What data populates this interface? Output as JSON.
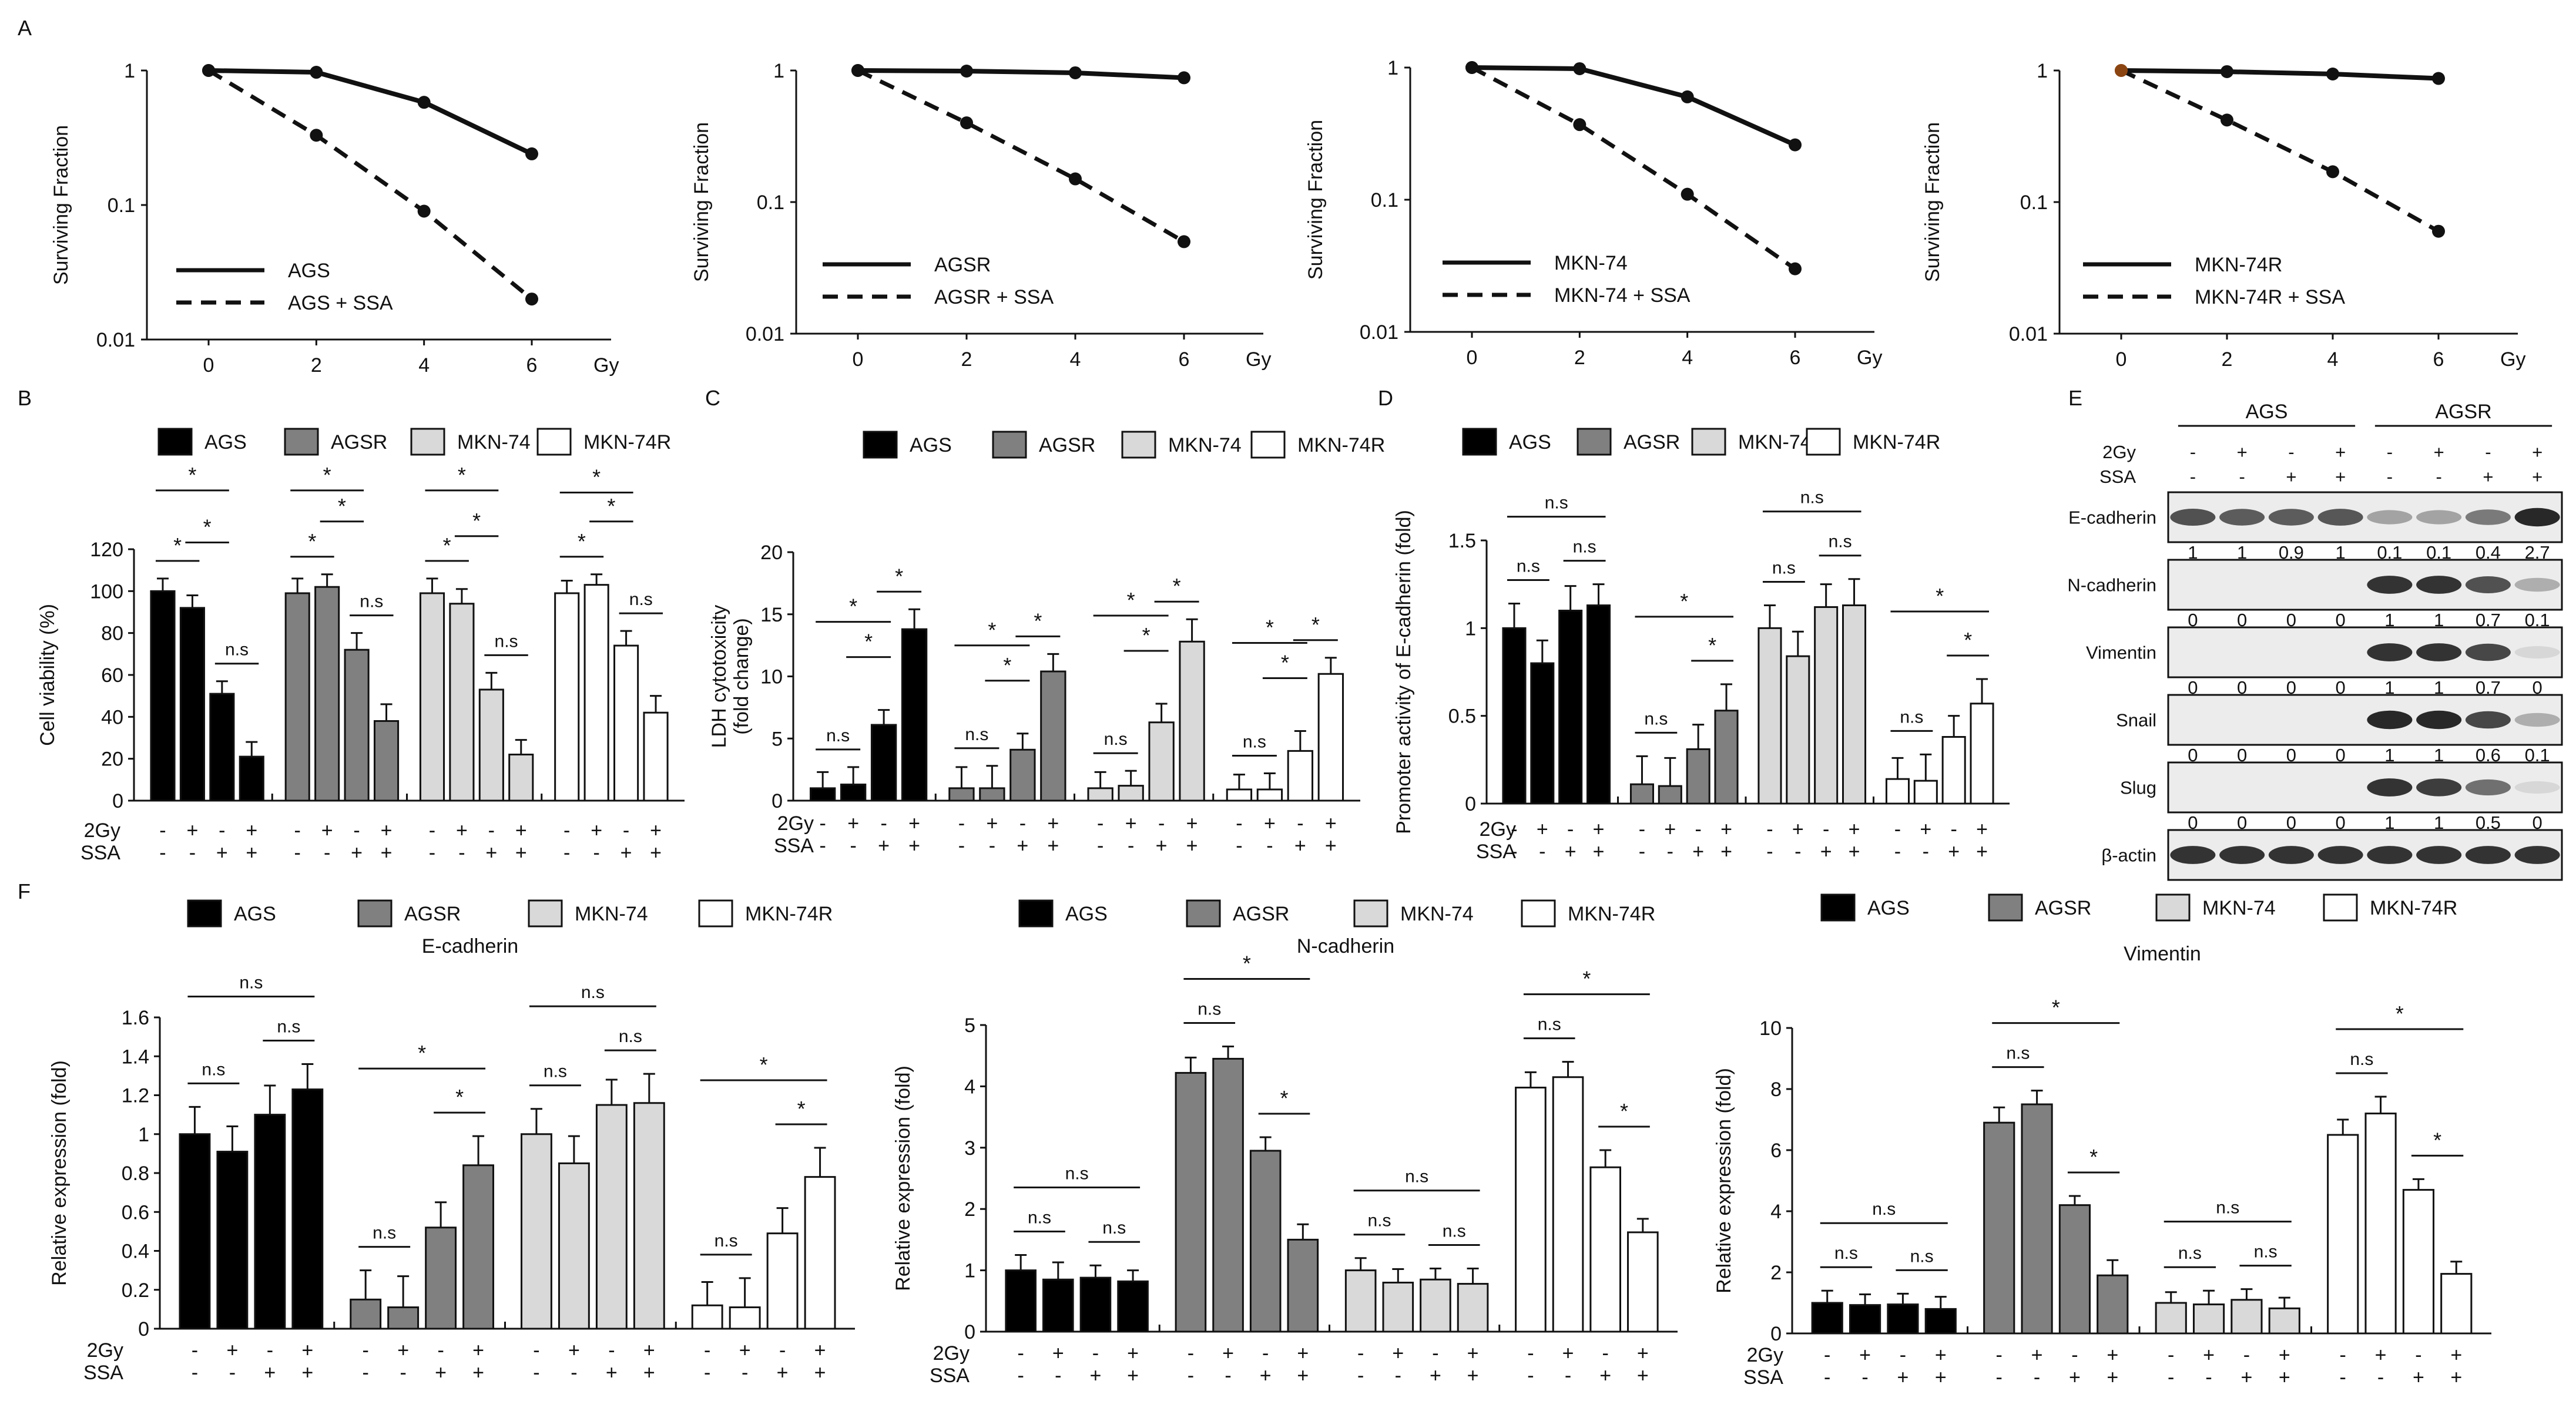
{
  "panel_labels": [
    "A",
    "B",
    "C",
    "D",
    "E",
    "F"
  ],
  "chart_data": [
    {
      "id": "A1",
      "type": "line",
      "ylabel": "Surviving Fraction",
      "xlabel": "Gy",
      "x": [
        0,
        2,
        4,
        6
      ],
      "yscale": "log",
      "ylim": [
        0.01,
        1
      ],
      "yticks": [
        "1",
        "0.1",
        "0.01"
      ],
      "xticks": [
        "0",
        "2",
        "4",
        "6"
      ],
      "series": [
        {
          "name": "AGS",
          "values": [
            1,
            0.97,
            0.58,
            0.24
          ]
        },
        {
          "name": "AGS + SSA",
          "values": [
            1,
            0.33,
            0.09,
            0.02
          ]
        }
      ]
    },
    {
      "id": "A2",
      "type": "line",
      "ylabel": "Surviving Fraction",
      "xlabel": "Gy",
      "x": [
        0,
        2,
        4,
        6
      ],
      "yscale": "log",
      "ylim": [
        0.01,
        1
      ],
      "yticks": [
        "1",
        "0.1",
        "0.01"
      ],
      "xticks": [
        "0",
        "2",
        "4",
        "6"
      ],
      "series": [
        {
          "name": "AGSR",
          "values": [
            1,
            0.99,
            0.96,
            0.88
          ]
        },
        {
          "name": "AGSR + SSA",
          "values": [
            1,
            0.4,
            0.15,
            0.05
          ]
        }
      ]
    },
    {
      "id": "A3",
      "type": "line",
      "ylabel": "Surviving Fraction",
      "xlabel": "Gy",
      "x": [
        0,
        2,
        4,
        6
      ],
      "yscale": "log",
      "ylim": [
        0.01,
        1
      ],
      "yticks": [
        "1",
        "0.1",
        "0.01"
      ],
      "xticks": [
        "0",
        "2",
        "4",
        "6"
      ],
      "series": [
        {
          "name": "MKN-74",
          "values": [
            1,
            0.98,
            0.6,
            0.26
          ]
        },
        {
          "name": "MKN-74 + SSA",
          "values": [
            1,
            0.37,
            0.11,
            0.03
          ]
        }
      ]
    },
    {
      "id": "A4",
      "type": "line",
      "ylabel": "Surviving Fraction",
      "xlabel": "Gy",
      "x": [
        0,
        2,
        4,
        6
      ],
      "yscale": "log",
      "ylim": [
        0.01,
        1
      ],
      "yticks": [
        "1",
        "0.1",
        "0.01"
      ],
      "xticks": [
        "0",
        "2",
        "4",
        "6"
      ],
      "series": [
        {
          "name": "MKN-74R",
          "values": [
            1,
            0.98,
            0.94,
            0.87
          ]
        },
        {
          "name": "MKN-74R + SSA",
          "values": [
            1,
            0.42,
            0.17,
            0.06
          ]
        }
      ]
    },
    {
      "id": "B",
      "type": "bar",
      "ylabel": "Cell viability (%)",
      "ylim": [
        0,
        120
      ],
      "yticks": [
        "0",
        "20",
        "40",
        "60",
        "80",
        "100",
        "120"
      ],
      "legend": [
        "AGS",
        "AGSR",
        "MKN-74",
        "MKN-74R"
      ],
      "groups": [
        {
          "name": "AGS",
          "values": [
            100,
            92,
            51,
            21
          ],
          "err": [
            6,
            6,
            6,
            7
          ]
        },
        {
          "name": "AGSR",
          "values": [
            99,
            102,
            72,
            38
          ],
          "err": [
            7,
            6,
            8,
            8
          ]
        },
        {
          "name": "MKN-74",
          "values": [
            99,
            94,
            53,
            22
          ],
          "err": [
            7,
            7,
            8,
            7
          ]
        },
        {
          "name": "MKN-74R",
          "values": [
            99,
            103,
            74,
            42
          ],
          "err": [
            6,
            5,
            7,
            8
          ]
        }
      ],
      "sig": [
        "*",
        "n.s",
        "*",
        "*",
        "*",
        "n.s",
        "*",
        "*",
        "*",
        "n.s",
        "*",
        "*",
        "*",
        "n.s",
        "*",
        "*"
      ]
    },
    {
      "id": "C",
      "type": "bar",
      "ylabel": "LDH cytotoxicity (fold change)",
      "ylim": [
        0,
        20
      ],
      "yticks": [
        "0",
        "5",
        "10",
        "15",
        "20"
      ],
      "legend": [
        "AGS",
        "AGSR",
        "MKN-74",
        "MKN-74R"
      ],
      "groups": [
        {
          "name": "AGS",
          "values": [
            1.0,
            1.3,
            6.1,
            13.8
          ],
          "err": [
            1.3,
            1.4,
            1.2,
            1.6
          ]
        },
        {
          "name": "AGSR",
          "values": [
            1.0,
            1.0,
            4.1,
            10.4
          ],
          "err": [
            1.7,
            1.8,
            1.3,
            1.4
          ]
        },
        {
          "name": "MKN-74",
          "values": [
            1.0,
            1.2,
            6.3,
            12.8
          ],
          "err": [
            1.3,
            1.2,
            1.5,
            1.8
          ]
        },
        {
          "name": "MKN-74R",
          "values": [
            0.9,
            0.9,
            4.0,
            10.2
          ],
          "err": [
            1.2,
            1.3,
            1.6,
            1.3
          ]
        }
      ],
      "sig": [
        "n.s",
        "*",
        "*",
        "*",
        "n.s",
        "*",
        "*",
        "*",
        "n.s",
        "*",
        "*",
        "*",
        "n.s",
        "*",
        "*",
        "*"
      ]
    },
    {
      "id": "D",
      "type": "bar",
      "ylabel": "Promoter activity of E-cadherin (fold)",
      "ylim": [
        0,
        1.5
      ],
      "yticks": [
        "0",
        "0.5",
        "1",
        "1.5"
      ],
      "legend": [
        "AGS",
        "AGSR",
        "MKN-74",
        "MKN-74R"
      ],
      "groups": [
        {
          "name": "AGS",
          "values": [
            1.0,
            0.8,
            1.1,
            1.13
          ],
          "err": [
            0.14,
            0.13,
            0.14,
            0.12
          ]
        },
        {
          "name": "AGSR",
          "values": [
            0.11,
            0.1,
            0.31,
            0.53
          ],
          "err": [
            0.16,
            0.16,
            0.14,
            0.15
          ]
        },
        {
          "name": "MKN-74",
          "values": [
            1.0,
            0.84,
            1.12,
            1.13
          ],
          "err": [
            0.13,
            0.14,
            0.13,
            0.15
          ]
        },
        {
          "name": "MKN-74R",
          "values": [
            0.14,
            0.13,
            0.38,
            0.57
          ],
          "err": [
            0.12,
            0.15,
            0.12,
            0.14
          ]
        }
      ],
      "sig": [
        "n.s",
        "n.s",
        "n.s",
        "n.s",
        "*",
        "*",
        "n.s",
        "n.s",
        "n.s",
        "n.s",
        "*",
        "*"
      ]
    },
    {
      "id": "F1",
      "type": "bar",
      "title": "E-cadherin",
      "ylabel": "Relative expression (fold)",
      "ylim": [
        0,
        1.6
      ],
      "yticks": [
        "0",
        "0.2",
        "0.4",
        "0.6",
        "0.8",
        "1",
        "1.2",
        "1.4",
        "1.6"
      ],
      "legend": [
        "AGS",
        "AGSR",
        "MKN-74",
        "MKN-74R"
      ],
      "groups": [
        {
          "name": "AGS",
          "values": [
            1.0,
            0.91,
            1.1,
            1.23
          ],
          "err": [
            0.14,
            0.13,
            0.15,
            0.13
          ]
        },
        {
          "name": "AGSR",
          "values": [
            0.15,
            0.11,
            0.52,
            0.84
          ],
          "err": [
            0.15,
            0.16,
            0.13,
            0.15
          ]
        },
        {
          "name": "MKN-74",
          "values": [
            1.0,
            0.85,
            1.15,
            1.16
          ],
          "err": [
            0.13,
            0.14,
            0.13,
            0.15
          ]
        },
        {
          "name": "MKN-74R",
          "values": [
            0.12,
            0.11,
            0.49,
            0.78
          ],
          "err": [
            0.12,
            0.15,
            0.13,
            0.15
          ]
        }
      ],
      "sig": [
        "n.s",
        "n.s",
        "n.s",
        "n.s",
        "*",
        "*",
        "n.s",
        "n.s",
        "n.s",
        "n.s",
        "*",
        "*"
      ]
    },
    {
      "id": "F2",
      "type": "bar",
      "title": "N-cadherin",
      "ylabel": "Relative expression (fold)",
      "ylim": [
        0,
        5
      ],
      "yticks": [
        "0",
        "1",
        "2",
        "3",
        "4",
        "5"
      ],
      "legend": [
        "AGS",
        "AGSR",
        "MKN-74",
        "MKN-74R"
      ],
      "groups": [
        {
          "name": "AGS",
          "values": [
            1.0,
            0.85,
            0.88,
            0.82
          ],
          "err": [
            0.25,
            0.28,
            0.2,
            0.18
          ]
        },
        {
          "name": "AGSR",
          "values": [
            4.22,
            4.45,
            2.95,
            1.5
          ],
          "err": [
            0.25,
            0.2,
            0.22,
            0.25
          ]
        },
        {
          "name": "MKN-74",
          "values": [
            1.0,
            0.8,
            0.85,
            0.78
          ],
          "err": [
            0.2,
            0.22,
            0.18,
            0.25
          ]
        },
        {
          "name": "MKN-74R",
          "values": [
            3.98,
            4.15,
            2.68,
            1.62
          ],
          "err": [
            0.25,
            0.25,
            0.28,
            0.22
          ]
        }
      ],
      "sig": [
        "n.s",
        "n.s",
        "n.s",
        "n.s",
        "*",
        "*",
        "n.s",
        "n.s",
        "n.s",
        "n.s",
        "*",
        "*"
      ]
    },
    {
      "id": "F3",
      "type": "bar",
      "title": "Vimentin",
      "ylabel": "Relative expression (fold)",
      "ylim": [
        0,
        10
      ],
      "yticks": [
        "0",
        "2",
        "4",
        "6",
        "8",
        "10"
      ],
      "legend": [
        "AGS",
        "AGSR",
        "MKN-74",
        "MKN-74R"
      ],
      "groups": [
        {
          "name": "AGS",
          "values": [
            1.0,
            0.93,
            0.95,
            0.8
          ],
          "err": [
            0.4,
            0.35,
            0.35,
            0.4
          ]
        },
        {
          "name": "AGSR",
          "values": [
            6.9,
            7.5,
            4.2,
            1.9
          ],
          "err": [
            0.5,
            0.45,
            0.3,
            0.5
          ]
        },
        {
          "name": "MKN-74",
          "values": [
            1.0,
            0.95,
            1.1,
            0.82
          ],
          "err": [
            0.35,
            0.45,
            0.35,
            0.35
          ]
        },
        {
          "name": "MKN-74R",
          "values": [
            6.5,
            7.2,
            4.7,
            1.95
          ],
          "err": [
            0.5,
            0.55,
            0.35,
            0.4
          ]
        }
      ],
      "sig": [
        "n.s",
        "n.s",
        "n.s",
        "n.s",
        "*",
        "*",
        "n.s",
        "n.s",
        "n.s",
        "n.s",
        "*",
        "*"
      ]
    }
  ],
  "conditions": {
    "row1_label": "2Gy",
    "row2_label": "SSA",
    "row1": [
      "-",
      "+",
      "-",
      "+"
    ],
    "row2": [
      "-",
      "-",
      "+",
      "+"
    ]
  },
  "western": {
    "groups": [
      "AGS",
      "AGSR"
    ],
    "lanes_2gy": [
      "-",
      "+",
      "-",
      "+",
      "-",
      "+",
      "-",
      "+"
    ],
    "lanes_ssa": [
      "-",
      "-",
      "+",
      "+",
      "-",
      "-",
      "+",
      "+"
    ],
    "proteins": [
      {
        "name": "E-cadherin",
        "values": [
          "1",
          "1",
          "0.9",
          "1",
          "0.1",
          "0.1",
          "0.4",
          "2.7"
        ]
      },
      {
        "name": "N-cadherin",
        "values": [
          "0",
          "0",
          "0",
          "0",
          "1",
          "1",
          "0.7",
          "0.1"
        ]
      },
      {
        "name": "Vimentin",
        "values": [
          "0",
          "0",
          "0",
          "0",
          "1",
          "1",
          "0.7",
          "0"
        ]
      },
      {
        "name": "Snail",
        "values": [
          "0",
          "0",
          "0",
          "0",
          "1",
          "1",
          "0.6",
          "0.1"
        ]
      },
      {
        "name": "Slug",
        "values": [
          "0",
          "0",
          "0",
          "0",
          "1",
          "1",
          "0.5",
          "0"
        ]
      },
      {
        "name": "β-actin",
        "values": [
          "",
          "",
          "",
          "",
          "",
          "",
          "",
          ""
        ]
      }
    ],
    "intensity": [
      [
        0.75,
        0.7,
        0.7,
        0.72,
        0.35,
        0.35,
        0.55,
        0.95
      ],
      [
        0,
        0,
        0,
        0,
        0.9,
        0.9,
        0.75,
        0.3
      ],
      [
        0,
        0,
        0,
        0,
        0.9,
        0.9,
        0.8,
        0.1
      ],
      [
        0,
        0,
        0,
        0,
        0.95,
        0.95,
        0.8,
        0.3
      ],
      [
        0,
        0,
        0,
        0,
        0.9,
        0.85,
        0.6,
        0.1
      ],
      [
        0.9,
        0.9,
        0.9,
        0.9,
        0.9,
        0.9,
        0.9,
        0.9
      ]
    ]
  },
  "colors": {
    "ink": "#111111",
    "black": "#000000",
    "dark_gray": "#808080",
    "light_gray": "#d9d9d9",
    "white": "#ffffff",
    "point_alt": "#8b4513"
  }
}
